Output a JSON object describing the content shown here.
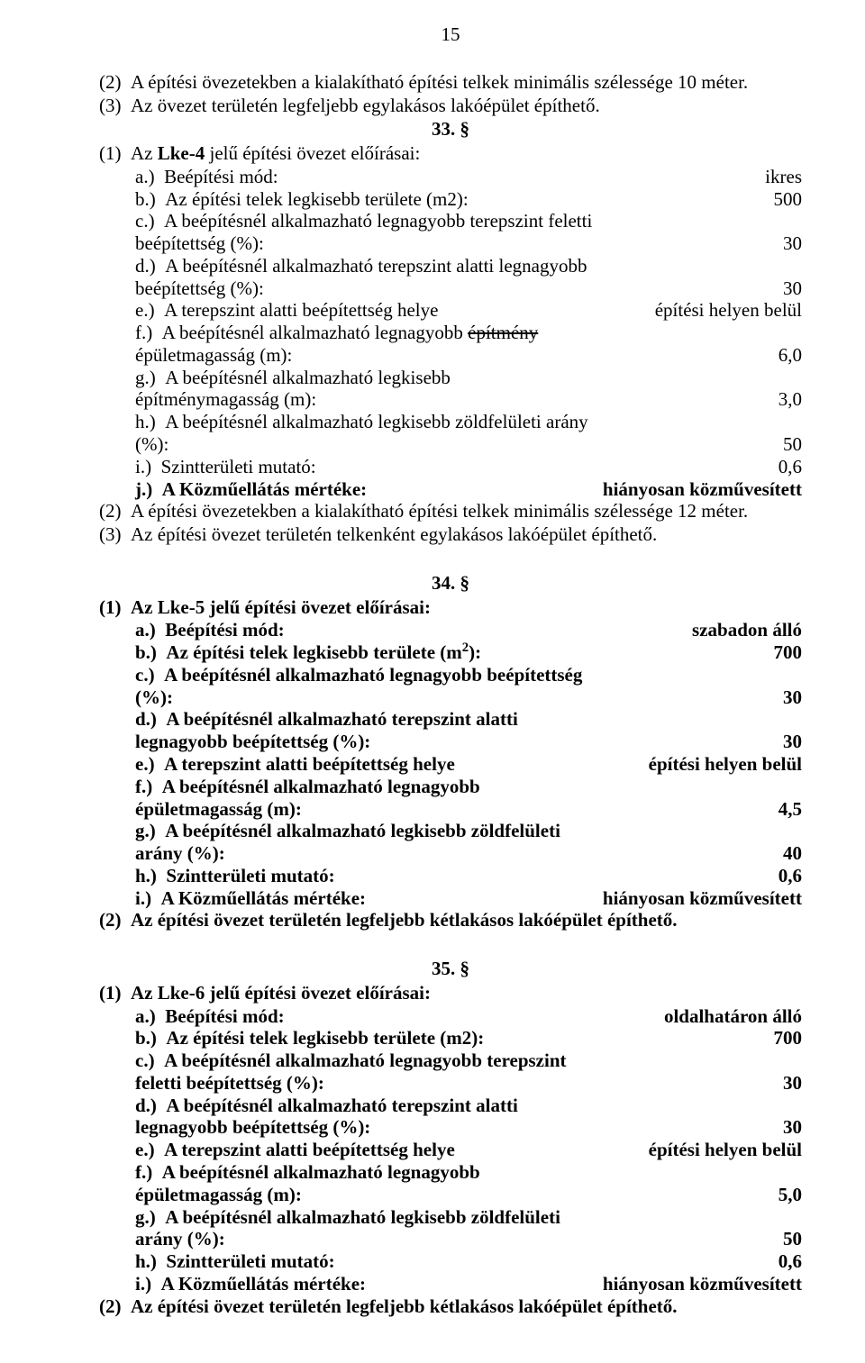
{
  "page_number": "15",
  "top": {
    "p1": "(2)  A építési övezetekben a kialakítható építési telkek minimális szélessége 10 méter.",
    "p2": "(3)  Az övezet területén legfeljebb egylakásos lakóépület építhető."
  },
  "s33": {
    "num": "33. §",
    "lead": "(1)  Az ",
    "lead_bold": "Lke-4",
    "lead_rest": " jelű építési övezet előírásai:",
    "a_l": "a.)  Beépítési mód:",
    "a_v": "ikres",
    "b_l": "b.)  Az építési telek legkisebb területe (m2):",
    "b_v": "500",
    "c_l": "c.)  A beépítésnél alkalmazható legnagyobb terepszint feletti beépítettség (%):",
    "c_v": "30",
    "d_l": "d.)  A beépítésnél alkalmazható terepszint alatti legnagyobb beépítettség (%):",
    "d_v": "30",
    "e_l": "e.)  A terepszint alatti beépítettség helye",
    "e_v": "építési helyen belül",
    "f_pre": "f.)  A beépítésnél alkalmazható legnagyobb ",
    "f_strike": "építmény ",
    "f_post": "épületmagasság (m):",
    "f_v": "6,0",
    "g_l": "g.)  A beépítésnél alkalmazható legkisebb építménymagasság (m):",
    "g_v": "3,0",
    "h_l": "h.)  A beépítésnél alkalmazható legkisebb zöldfelületi arány (%):",
    "h_v": "50",
    "i_l": "i.)  Szintterületi mutató:",
    "i_v": "0,6",
    "j_l": "j.)  A Közműellátás mértéke:",
    "j_v": "hiányosan közművesített",
    "p2": "(2)  A építési övezetekben a kialakítható építési telkek minimális szélessége 12 méter.",
    "p3": "(3)  Az építési övezet területén telkenként egylakásos lakóépület építhető."
  },
  "s34": {
    "num": "34. §",
    "lead": "(1)  Az Lke-5 jelű építési övezet előírásai:",
    "a_l": "a.)  Beépítési mód:",
    "a_v": "szabadon álló",
    "b_pre": "b.)  Az építési telek legkisebb területe (m",
    "b_sup": "2",
    "b_post": "):",
    "b_v": "700",
    "c_l": "c.)  A beépítésnél alkalmazható legnagyobb beépítettség (%):",
    "c_v": "30",
    "d_l": "d.)  A beépítésnél alkalmazható terepszint alatti legnagyobb beépítettség (%):",
    "d_v": "30",
    "e_l": "e.)  A terepszint alatti beépítettség helye",
    "e_v": "építési helyen belül",
    "f_l": "f.)  A beépítésnél alkalmazható legnagyobb épületmagasság (m):",
    "f_v": "4,5",
    "g_l": "g.)  A beépítésnél alkalmazható legkisebb zöldfelületi arány (%):",
    "g_v": "40",
    "h_l": "h.)  Szintterületi mutató:",
    "h_v": "0,6",
    "i_l": "i.)  A Közműellátás mértéke:",
    "i_v": "hiányosan közművesített",
    "p2": "(2)  Az építési övezet területén legfeljebb kétlakásos lakóépület építhető."
  },
  "s35": {
    "num": "35. §",
    "lead": "(1)  Az Lke-6 jelű építési övezet előírásai:",
    "a_l": "a.)  Beépítési mód:",
    "a_v": "oldalhatáron álló",
    "b_l": "b.)  Az építési telek legkisebb területe (m2):",
    "b_v": "700",
    "c_l": "c.)  A beépítésnél alkalmazható legnagyobb terepszint feletti beépítettség (%):",
    "c_v": "30",
    "d_l": "d.)  A beépítésnél alkalmazható terepszint alatti legnagyobb beépítettség (%):",
    "d_v": "30",
    "e_l": "e.)  A terepszint alatti beépítettség helye",
    "e_v": "építési helyen belül",
    "f_l": "f.)  A beépítésnél alkalmazható legnagyobb épületmagasság (m):",
    "f_v": "5,0",
    "g_l": "g.)  A beépítésnél alkalmazható legkisebb zöldfelületi arány (%):",
    "g_v": "50",
    "h_l": "h.)  Szintterületi mutató:",
    "h_v": "0,6",
    "i_l": "i.)  A Közműellátás mértéke:",
    "i_v": "hiányosan közművesített",
    "p2": "(2)  Az építési övezet területén legfeljebb kétlakásos lakóépület építhető."
  }
}
